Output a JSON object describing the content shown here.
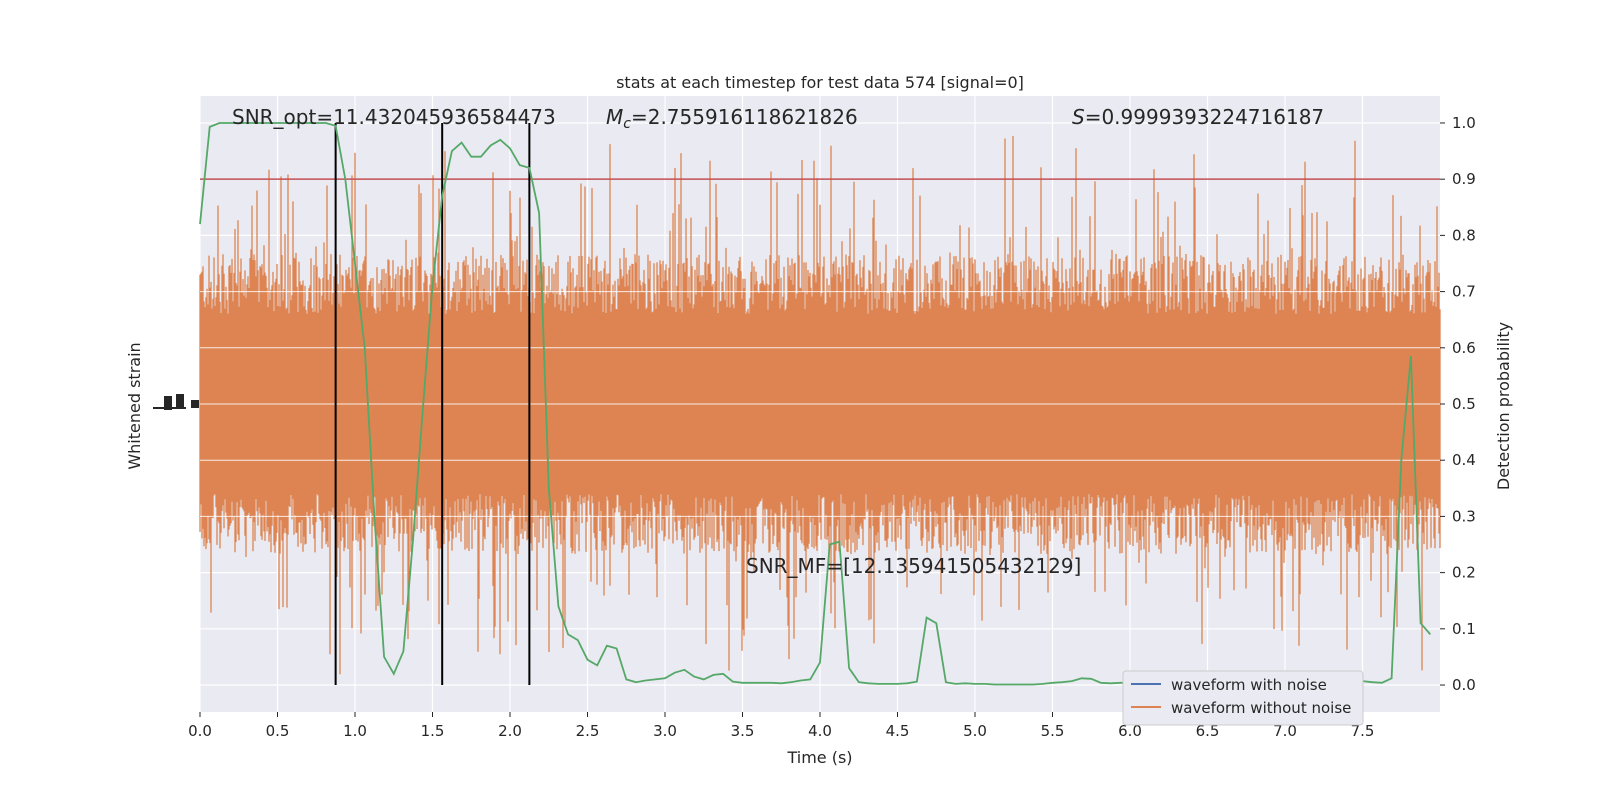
{
  "chart_data": {
    "type": "line",
    "title": "stats at each timestep for test data 574 [signal=0]",
    "xlabel": "Time (s)",
    "ylabel_left": "Whitened strain",
    "ylabel_right": "Detection probability",
    "xlim": [
      0,
      8
    ],
    "ylim_right": [
      -0.048,
      1.048
    ],
    "x_ticks": [
      "0.0",
      "0.5",
      "1.0",
      "1.5",
      "2.0",
      "2.5",
      "3.0",
      "3.5",
      "4.0",
      "4.5",
      "5.0",
      "5.5",
      "6.0",
      "6.5",
      "7.0",
      "7.5"
    ],
    "y_ticks_right": [
      "0.0",
      "0.1",
      "0.2",
      "0.3",
      "0.4",
      "0.5",
      "0.6",
      "0.7",
      "0.8",
      "0.9",
      "1.0"
    ],
    "grid": true,
    "legend_position": "lower right",
    "legend": [
      {
        "name": "waveform with noise",
        "color": "#4c72b0"
      },
      {
        "name": "waveform without noise",
        "color": "#dd8452"
      }
    ],
    "annotations": {
      "snr_opt": "SNR_opt=11.432045936584473",
      "mc_symbol": "M",
      "mc_sub": "c",
      "mc_value": "=2.755916118621826",
      "s_symbol": "S",
      "s_value": "=0.9999393224716187",
      "snr_mf": "SNR_MF=[12.135941505432129]"
    },
    "threshold": {
      "value": 0.9,
      "color": "#c44e52"
    },
    "vertical_lines": [
      0.875,
      1.5625,
      2.125
    ],
    "detection_probability": {
      "color": "#55a868",
      "x": [
        0,
        0.0625,
        0.125,
        0.1875,
        0.25,
        0.3125,
        0.375,
        0.4375,
        0.5,
        0.5625,
        0.625,
        0.6875,
        0.75,
        0.8125,
        0.875,
        0.9375,
        1.0,
        1.0625,
        1.125,
        1.1875,
        1.25,
        1.3125,
        1.375,
        1.4375,
        1.5,
        1.5625,
        1.625,
        1.6875,
        1.75,
        1.8125,
        1.875,
        1.9375,
        2.0,
        2.0625,
        2.125,
        2.1875,
        2.25,
        2.3125,
        2.375,
        2.4375,
        2.5,
        2.5625,
        2.625,
        2.6875,
        2.75,
        2.8125,
        2.875,
        2.9375,
        3.0,
        3.0625,
        3.125,
        3.1875,
        3.25,
        3.3125,
        3.375,
        3.4375,
        3.5,
        3.5625,
        3.625,
        3.6875,
        3.75,
        3.8125,
        3.875,
        3.9375,
        4.0,
        4.0625,
        4.125,
        4.1875,
        4.25,
        4.3125,
        4.375,
        4.4375,
        4.5,
        4.5625,
        4.625,
        4.6875,
        4.75,
        4.8125,
        4.875,
        4.9375,
        5.0,
        5.0625,
        5.125,
        5.1875,
        5.25,
        5.3125,
        5.375,
        5.4375,
        5.5,
        5.5625,
        5.625,
        5.6875,
        5.75,
        5.8125,
        5.875,
        5.9375,
        6.0,
        6.0625,
        6.125,
        6.1875,
        6.25,
        6.3125,
        6.375,
        6.4375,
        6.5,
        6.5625,
        6.625,
        6.6875,
        6.75,
        6.8125,
        6.875,
        6.9375,
        7.0,
        7.0625,
        7.125,
        7.1875,
        7.25,
        7.3125,
        7.375,
        7.4375,
        7.5,
        7.5625,
        7.625,
        7.6875,
        7.75,
        7.8125,
        7.875,
        7.9375
      ],
      "values": [
        0.82,
        0.993,
        1.0,
        1.0,
        1.0,
        1.0,
        1.0,
        1.0,
        1.0,
        1.0,
        1.0,
        1.0,
        1.0,
        1.0,
        0.995,
        0.9,
        0.75,
        0.6,
        0.3,
        0.05,
        0.02,
        0.06,
        0.26,
        0.49,
        0.71,
        0.87,
        0.95,
        0.965,
        0.94,
        0.94,
        0.96,
        0.97,
        0.955,
        0.925,
        0.92,
        0.84,
        0.35,
        0.14,
        0.09,
        0.08,
        0.045,
        0.035,
        0.07,
        0.065,
        0.01,
        0.005,
        0.008,
        0.01,
        0.012,
        0.022,
        0.027,
        0.015,
        0.01,
        0.018,
        0.02,
        0.006,
        0.004,
        0.004,
        0.004,
        0.004,
        0.003,
        0.005,
        0.008,
        0.01,
        0.04,
        0.25,
        0.255,
        0.03,
        0.005,
        0.003,
        0.002,
        0.002,
        0.002,
        0.003,
        0.006,
        0.12,
        0.11,
        0.005,
        0.002,
        0.003,
        0.002,
        0.002,
        0.001,
        0.001,
        0.001,
        0.001,
        0.001,
        0.002,
        0.004,
        0.005,
        0.007,
        0.012,
        0.011,
        0.004,
        0.003,
        0.004,
        0.004,
        0.004,
        0.005,
        0.003,
        0.003,
        0.004,
        0.003,
        0.004,
        0.003,
        0.004,
        0.004,
        0.003,
        0.003,
        0.004,
        0.003,
        0.004,
        0.003,
        0.004,
        0.003,
        0.004,
        0.003,
        0.004,
        0.004,
        0.005,
        0.007,
        0.005,
        0.004,
        0.012,
        0.4,
        0.585,
        0.11,
        0.09
      ]
    }
  }
}
